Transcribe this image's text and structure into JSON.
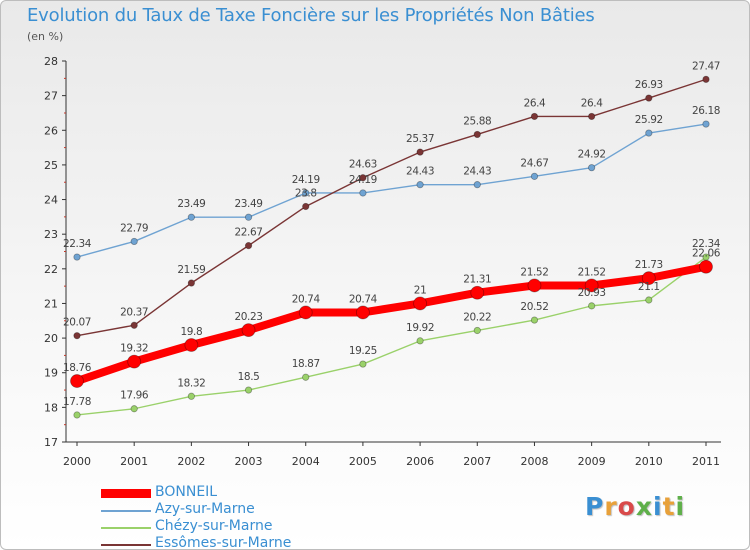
{
  "header": {
    "title": "Evolution du Taux de Taxe Foncière sur les Propriétés Non Bâties",
    "unit": "(en %)"
  },
  "logo": {
    "text": "Proxiti"
  },
  "chart_data": {
    "type": "line",
    "x": [
      "2000",
      "2001",
      "2002",
      "2003",
      "2004",
      "2005",
      "2006",
      "2007",
      "2008",
      "2009",
      "2010",
      "2011"
    ],
    "ylim": [
      17,
      28
    ],
    "yticks": [
      17,
      18,
      19,
      20,
      21,
      22,
      23,
      24,
      25,
      26,
      27,
      28
    ],
    "grid": false,
    "legend_position": "bottom-left",
    "series": [
      {
        "name": "BONNEIL",
        "color": "#ff0000",
        "bold": true,
        "values": [
          18.76,
          19.32,
          19.8,
          20.23,
          20.74,
          20.74,
          21,
          21.31,
          21.52,
          21.52,
          21.73,
          22.06
        ],
        "labels": [
          "18.76",
          "19.32",
          "19.8",
          "20.23",
          "20.74",
          "20.74",
          "21",
          "21.31",
          "21.52",
          "21.52",
          "21.73",
          "22.06"
        ]
      },
      {
        "name": "Azy-sur-Marne",
        "color": "#6fa3d2",
        "values": [
          22.34,
          22.79,
          23.49,
          23.49,
          24.19,
          24.19,
          24.43,
          24.43,
          24.67,
          24.92,
          25.92,
          26.18
        ],
        "labels": [
          "22.34",
          "22.79",
          "23.49",
          "23.49",
          "24.19",
          "24.19",
          "24.43",
          "24.43",
          "24.67",
          "24.92",
          "25.92",
          "26.18"
        ]
      },
      {
        "name": "Chézy-sur-Marne",
        "color": "#9ad16a",
        "values": [
          17.78,
          17.96,
          18.32,
          18.5,
          18.87,
          19.25,
          19.92,
          20.22,
          20.52,
          20.93,
          21.1,
          22.34
        ],
        "labels": [
          "17.78",
          "17.96",
          "18.32",
          "18.5",
          "18.87",
          "19.25",
          "19.92",
          "20.22",
          "20.52",
          "20.93",
          "21.1",
          "22.34"
        ]
      },
      {
        "name": "Essômes-sur-Marne",
        "color": "#7a3535",
        "values": [
          20.07,
          20.37,
          21.59,
          22.67,
          23.8,
          24.63,
          25.37,
          25.88,
          26.4,
          26.4,
          26.93,
          27.47
        ],
        "labels": [
          "20.07",
          "20.37",
          "21.59",
          "22.67",
          "23.8",
          "24.63",
          "25.37",
          "25.88",
          "26.4",
          "26.4",
          "26.93",
          "27.47"
        ]
      }
    ]
  }
}
